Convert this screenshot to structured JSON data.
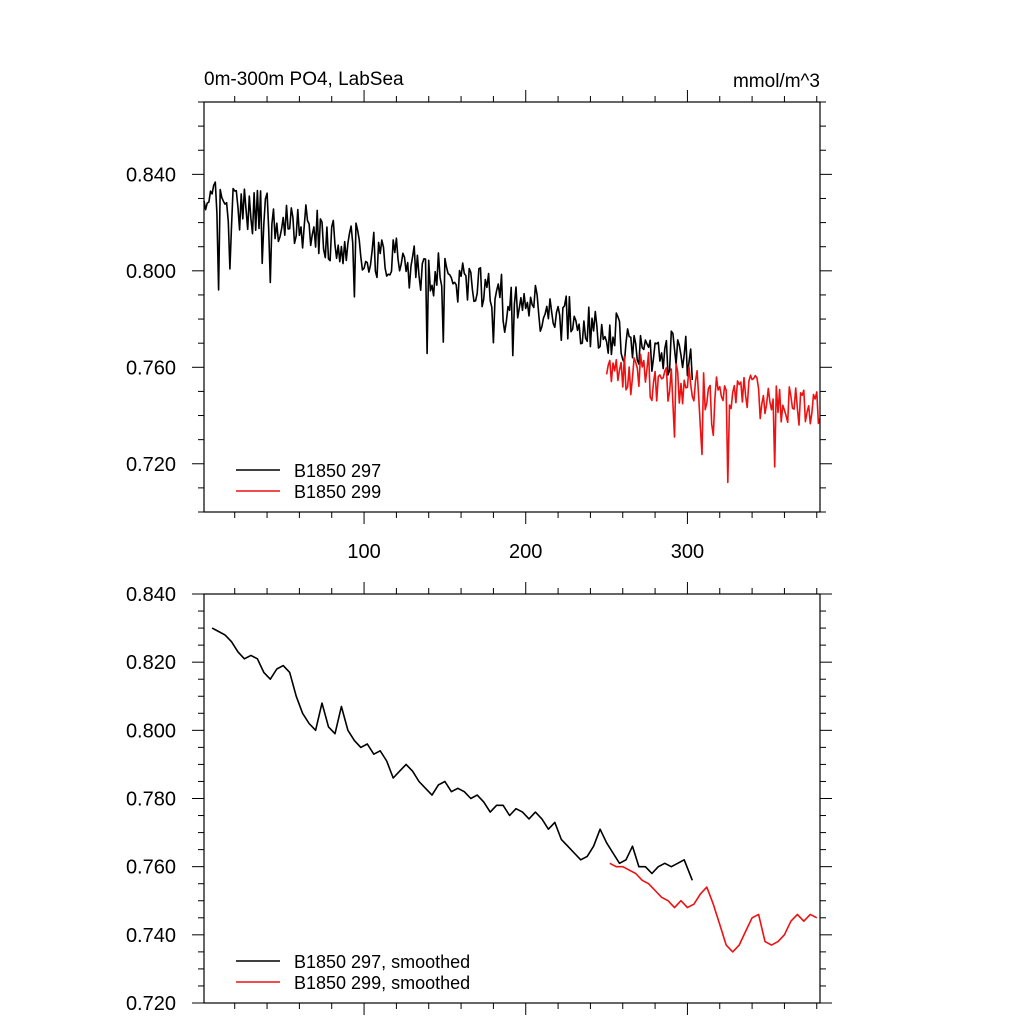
{
  "chart_data": [
    {
      "type": "line",
      "title_left": "0m-300m PO4, LabSea",
      "title_right": "mmol/m^3",
      "xlim": [
        1,
        382
      ],
      "ylim": [
        0.7,
        0.87
      ],
      "x_ticks": [
        100,
        200,
        300
      ],
      "x_tick_labels": [
        "100",
        "200",
        "300"
      ],
      "y_ticks": [
        0.72,
        0.76,
        0.8,
        0.84
      ],
      "y_tick_labels": [
        "0.720",
        "0.760",
        "0.800",
        "0.840"
      ],
      "series": [
        {
          "name": "B1850 297",
          "color": "#000000",
          "x_start": 1,
          "x_end": 303,
          "trend_start": 0.832,
          "trend_end": 0.762,
          "noise": 0.01,
          "dip_freq": 0.06,
          "seed": 297
        },
        {
          "name": "B1850 299",
          "color": "#ee1111",
          "x_start": 250,
          "x_end": 382,
          "trend_start": 0.76,
          "trend_end": 0.742,
          "noise": 0.01,
          "dip_freq": 0.08,
          "seed": 299
        }
      ]
    },
    {
      "type": "line",
      "xlim": [
        1,
        382
      ],
      "ylim": [
        0.72,
        0.84
      ],
      "x_ticks": [
        100,
        200,
        300
      ],
      "y_ticks": [
        0.72,
        0.74,
        0.76,
        0.78,
        0.8,
        0.82,
        0.84
      ],
      "y_tick_labels": [
        "0.720",
        "0.740",
        "0.760",
        "0.780",
        "0.800",
        "0.820",
        "0.840"
      ],
      "series": [
        {
          "name": "B1850 297, smoothed",
          "color": "#000000",
          "x": [
            6,
            10,
            14,
            18,
            22,
            26,
            30,
            34,
            38,
            42,
            46,
            50,
            54,
            58,
            62,
            66,
            70,
            74,
            78,
            82,
            86,
            90,
            94,
            98,
            102,
            106,
            110,
            114,
            118,
            122,
            126,
            130,
            134,
            138,
            142,
            146,
            150,
            154,
            158,
            162,
            166,
            170,
            174,
            178,
            182,
            186,
            190,
            194,
            198,
            202,
            206,
            210,
            214,
            218,
            222,
            226,
            230,
            234,
            238,
            242,
            246,
            250,
            254,
            258,
            262,
            266,
            270,
            274,
            278,
            282,
            286,
            290,
            294,
            298,
            303
          ],
          "y": [
            0.83,
            0.829,
            0.828,
            0.826,
            0.823,
            0.821,
            0.822,
            0.821,
            0.817,
            0.815,
            0.818,
            0.819,
            0.817,
            0.81,
            0.805,
            0.802,
            0.8,
            0.808,
            0.801,
            0.799,
            0.807,
            0.8,
            0.797,
            0.795,
            0.796,
            0.793,
            0.794,
            0.791,
            0.786,
            0.788,
            0.79,
            0.788,
            0.785,
            0.783,
            0.781,
            0.784,
            0.785,
            0.782,
            0.783,
            0.782,
            0.78,
            0.781,
            0.779,
            0.776,
            0.778,
            0.778,
            0.775,
            0.777,
            0.776,
            0.774,
            0.776,
            0.774,
            0.771,
            0.773,
            0.768,
            0.766,
            0.764,
            0.762,
            0.763,
            0.766,
            0.771,
            0.767,
            0.764,
            0.761,
            0.762,
            0.766,
            0.76,
            0.76,
            0.758,
            0.76,
            0.761,
            0.76,
            0.761,
            0.762,
            0.756
          ]
        },
        {
          "name": "B1850 299, smoothed",
          "color": "#ee1111",
          "x": [
            252,
            256,
            260,
            264,
            268,
            272,
            276,
            280,
            284,
            288,
            292,
            296,
            300,
            304,
            308,
            312,
            316,
            320,
            324,
            328,
            332,
            336,
            340,
            344,
            348,
            352,
            356,
            360,
            364,
            368,
            372,
            376,
            380
          ],
          "y": [
            0.761,
            0.76,
            0.76,
            0.759,
            0.758,
            0.756,
            0.755,
            0.753,
            0.751,
            0.75,
            0.748,
            0.75,
            0.748,
            0.749,
            0.752,
            0.754,
            0.749,
            0.743,
            0.737,
            0.735,
            0.737,
            0.741,
            0.745,
            0.746,
            0.738,
            0.737,
            0.738,
            0.74,
            0.744,
            0.746,
            0.744,
            0.746,
            0.745
          ]
        }
      ]
    }
  ]
}
